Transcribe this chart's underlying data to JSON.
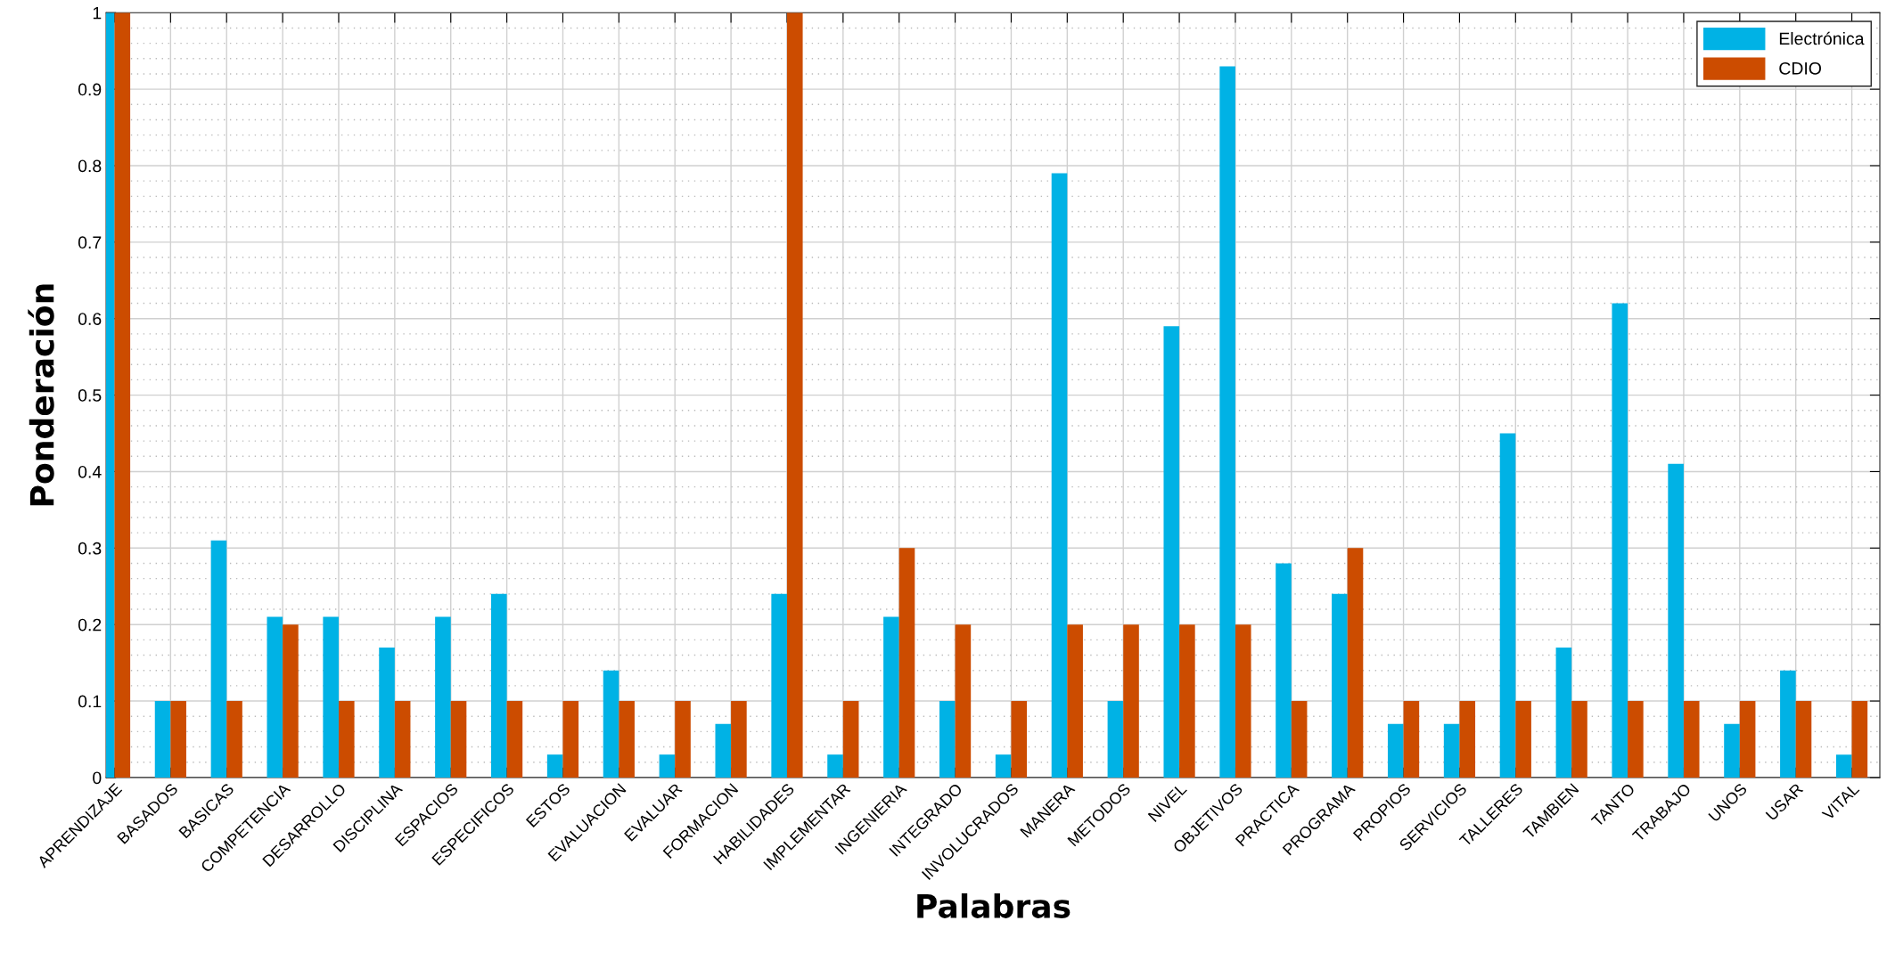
{
  "chart_data": {
    "type": "bar",
    "xlabel": "Palabras",
    "ylabel": "Ponderación",
    "categories": [
      "APRENDIZAJE",
      "BASADOS",
      "BASICAS",
      "COMPETENCIA",
      "DESARROLLO",
      "DISCIPLINA",
      "ESPACIOS",
      "ESPECIFICOS",
      "ESTOS",
      "EVALUACION",
      "EVALUAR",
      "FORMACION",
      "HABILIDADES",
      "IMPLEMENTAR",
      "INGENIERIA",
      "INTEGRADO",
      "INVOLUCRADOS",
      "MANERA",
      "METODOS",
      "NIVEL",
      "OBJETIVOS",
      "PRACTICA",
      "PROGRAMA",
      "PROPIOS",
      "SERVICIOS",
      "TALLERES",
      "TAMBIEN",
      "TANTO",
      "TRABAJO",
      "UNOS",
      "USAR",
      "VITAL"
    ],
    "series": [
      {
        "name": "Electrónica",
        "color": "#00b2e5",
        "values": [
          1,
          0.1,
          0.31,
          0.21,
          0.21,
          0.17,
          0.21,
          0.24,
          0.03,
          0.14,
          0.03,
          0.07,
          0.24,
          0.03,
          0.21,
          0.1,
          0.03,
          0.79,
          0.1,
          0.59,
          0.93,
          0.28,
          0.24,
          0.07,
          0.07,
          0.45,
          0.17,
          0.62,
          0.41,
          0.07,
          0.14,
          0.03
        ]
      },
      {
        "name": "CDIO",
        "color": "#cc4c00",
        "values": [
          1,
          0.1,
          0.1,
          0.2,
          0.1,
          0.1,
          0.1,
          0.1,
          0.1,
          0.1,
          0.1,
          0.1,
          1,
          0.1,
          0.3,
          0.2,
          0.1,
          0.2,
          0.2,
          0.2,
          0.2,
          0.1,
          0.3,
          0.1,
          0.1,
          0.1,
          0.1,
          0.1,
          0.1,
          0.1,
          0.1,
          0.1
        ]
      }
    ],
    "ylim": [
      0,
      1
    ],
    "yticks": [
      0,
      0.1,
      0.2,
      0.3,
      0.4,
      0.5,
      0.6,
      0.7,
      0.8,
      0.9,
      1
    ],
    "grid": true,
    "legend": "top right"
  }
}
